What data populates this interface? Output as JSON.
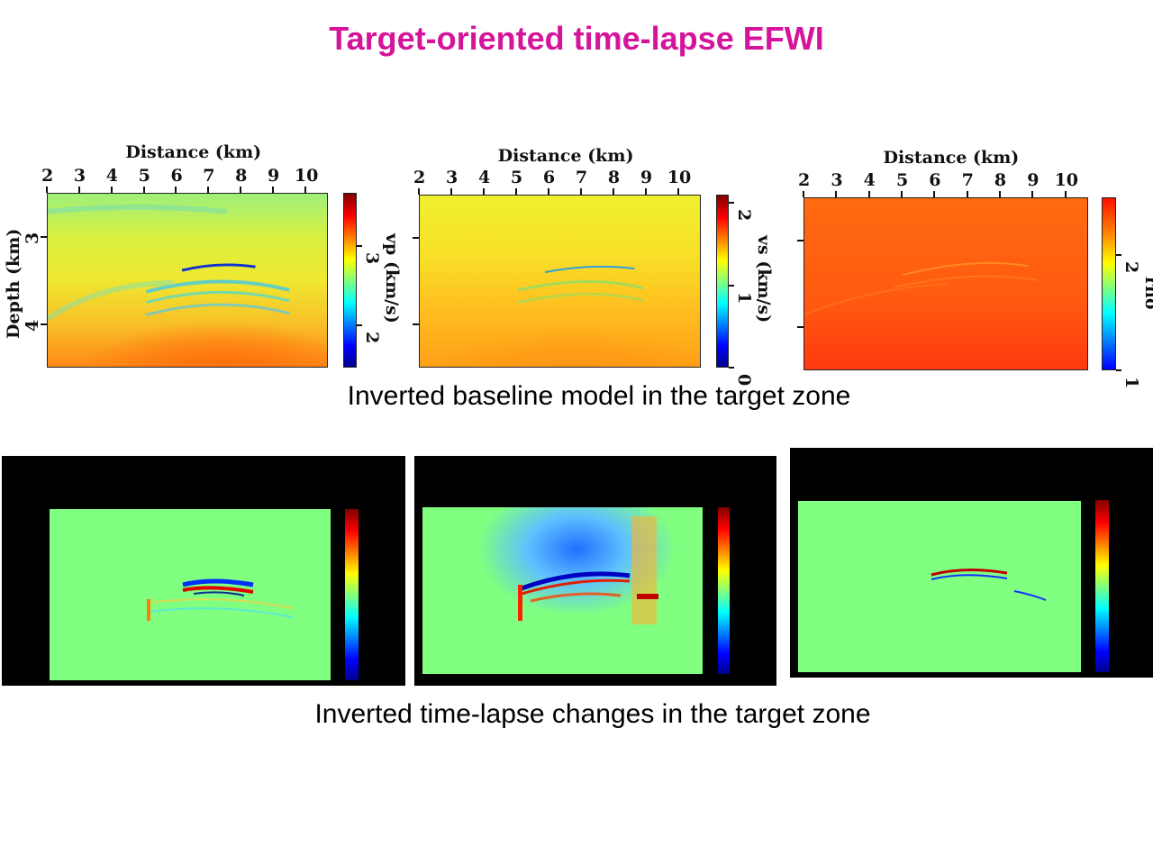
{
  "slide": {
    "title": "Target-oriented time-lapse EFWI",
    "caption_baseline": "Inverted baseline model in the target zone",
    "caption_timelapse": "Inverted time-lapse changes in the target zone",
    "title_color": "#d4159b"
  },
  "chart_data": [
    {
      "type": "heatmap",
      "panel": "baseline-vp",
      "xlabel": "Distance (km)",
      "ylabel": "Depth (km)",
      "xticks": [
        2,
        3,
        4,
        5,
        6,
        7,
        8,
        9,
        10
      ],
      "xlim": [
        2,
        10.7
      ],
      "yticks": [
        3,
        4
      ],
      "ytick_labels": [
        "3",
        "4"
      ],
      "ylim": [
        2.5,
        4.5
      ],
      "colorbar": {
        "label": "vp (km/s)",
        "ticks": [
          2,
          3
        ],
        "range": [
          1.47,
          3.67
        ],
        "colormap": "jet"
      }
    },
    {
      "type": "heatmap",
      "panel": "baseline-vs",
      "xlabel": "Distance (km)",
      "xticks": [
        2,
        3,
        4,
        5,
        6,
        7,
        8,
        9,
        10
      ],
      "xlim": [
        2,
        10.7
      ],
      "yticks": [
        3,
        4
      ],
      "ylim": [
        2.5,
        4.5
      ],
      "colorbar": {
        "label": "vs (km/s)",
        "ticks": [
          0,
          1,
          2
        ],
        "range": [
          0,
          2.1
        ],
        "colormap": "jet"
      }
    },
    {
      "type": "heatmap",
      "panel": "baseline-rho",
      "xlabel": "Distance (km)",
      "xticks": [
        2,
        3,
        4,
        5,
        6,
        7,
        8,
        9,
        10
      ],
      "xlim": [
        2,
        10.7
      ],
      "yticks": [
        3,
        4
      ],
      "ylim": [
        2.5,
        4.5
      ],
      "colorbar": {
        "label": "rho",
        "ticks": [
          1,
          2
        ],
        "range": [
          1,
          2.5
        ],
        "colormap": "jet"
      }
    },
    {
      "type": "heatmap",
      "panel": "timelapse-vp",
      "colorbar": {
        "colormap": "jet"
      }
    },
    {
      "type": "heatmap",
      "panel": "timelapse-vs",
      "colorbar": {
        "colormap": "jet"
      }
    },
    {
      "type": "heatmap",
      "panel": "timelapse-rho",
      "colorbar": {
        "colormap": "jet"
      }
    }
  ]
}
